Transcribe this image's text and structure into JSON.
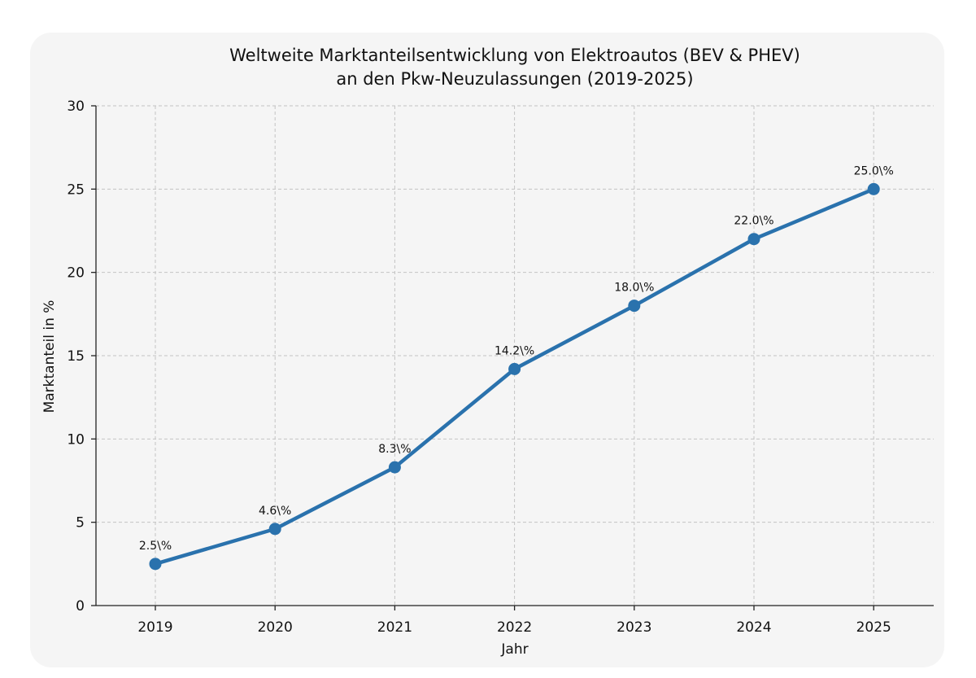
{
  "chart_data": {
    "type": "line",
    "title": "Weltweite Marktanteilsentwicklung von Elektroautos (BEV & PHEV)",
    "subtitle": "an den Pkw-Neuzulassungen (2019-2025)",
    "xlabel": "Jahr",
    "ylabel": "Marktanteil in %",
    "categories": [
      "2019",
      "2020",
      "2021",
      "2022",
      "2023",
      "2024",
      "2025"
    ],
    "series": [
      {
        "values": [
          2.5,
          4.6,
          8.3,
          14.2,
          18.0,
          22.0,
          25.0
        ],
        "data_labels": [
          "2.5\\%",
          "4.6\\%",
          "8.3\\%",
          "14.2\\%",
          "18.0\\%",
          "22.0\\%",
          "25.0\\%"
        ]
      }
    ],
    "ylim": [
      0,
      30
    ],
    "yticks": [
      "0",
      "5",
      "10",
      "15",
      "20",
      "25",
      "30"
    ],
    "grid": true,
    "line_color": "#2a72ad",
    "legend": "none"
  }
}
